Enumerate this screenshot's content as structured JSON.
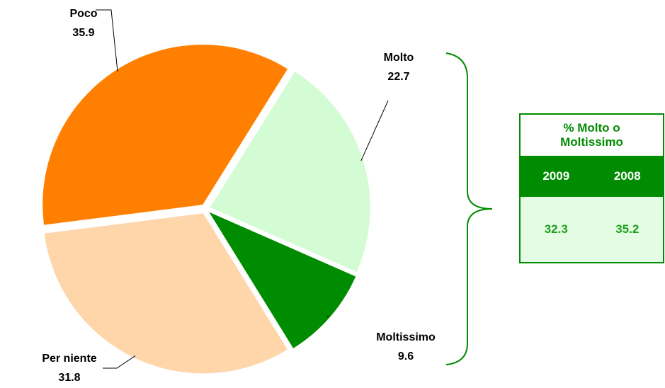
{
  "chart_data": {
    "type": "pie",
    "categories": [
      "Molto",
      "Moltissimo",
      "Per niente",
      "Poco"
    ],
    "values": [
      22.7,
      9.6,
      31.8,
      35.9
    ],
    "colors": [
      "#d4fcd4",
      "#008c00",
      "#ffd5aa",
      "#ff8000"
    ]
  },
  "table": {
    "title": "% Molto o Moltissimo",
    "headers": [
      "2009",
      "2008"
    ],
    "values": [
      32.3,
      35.2
    ]
  }
}
